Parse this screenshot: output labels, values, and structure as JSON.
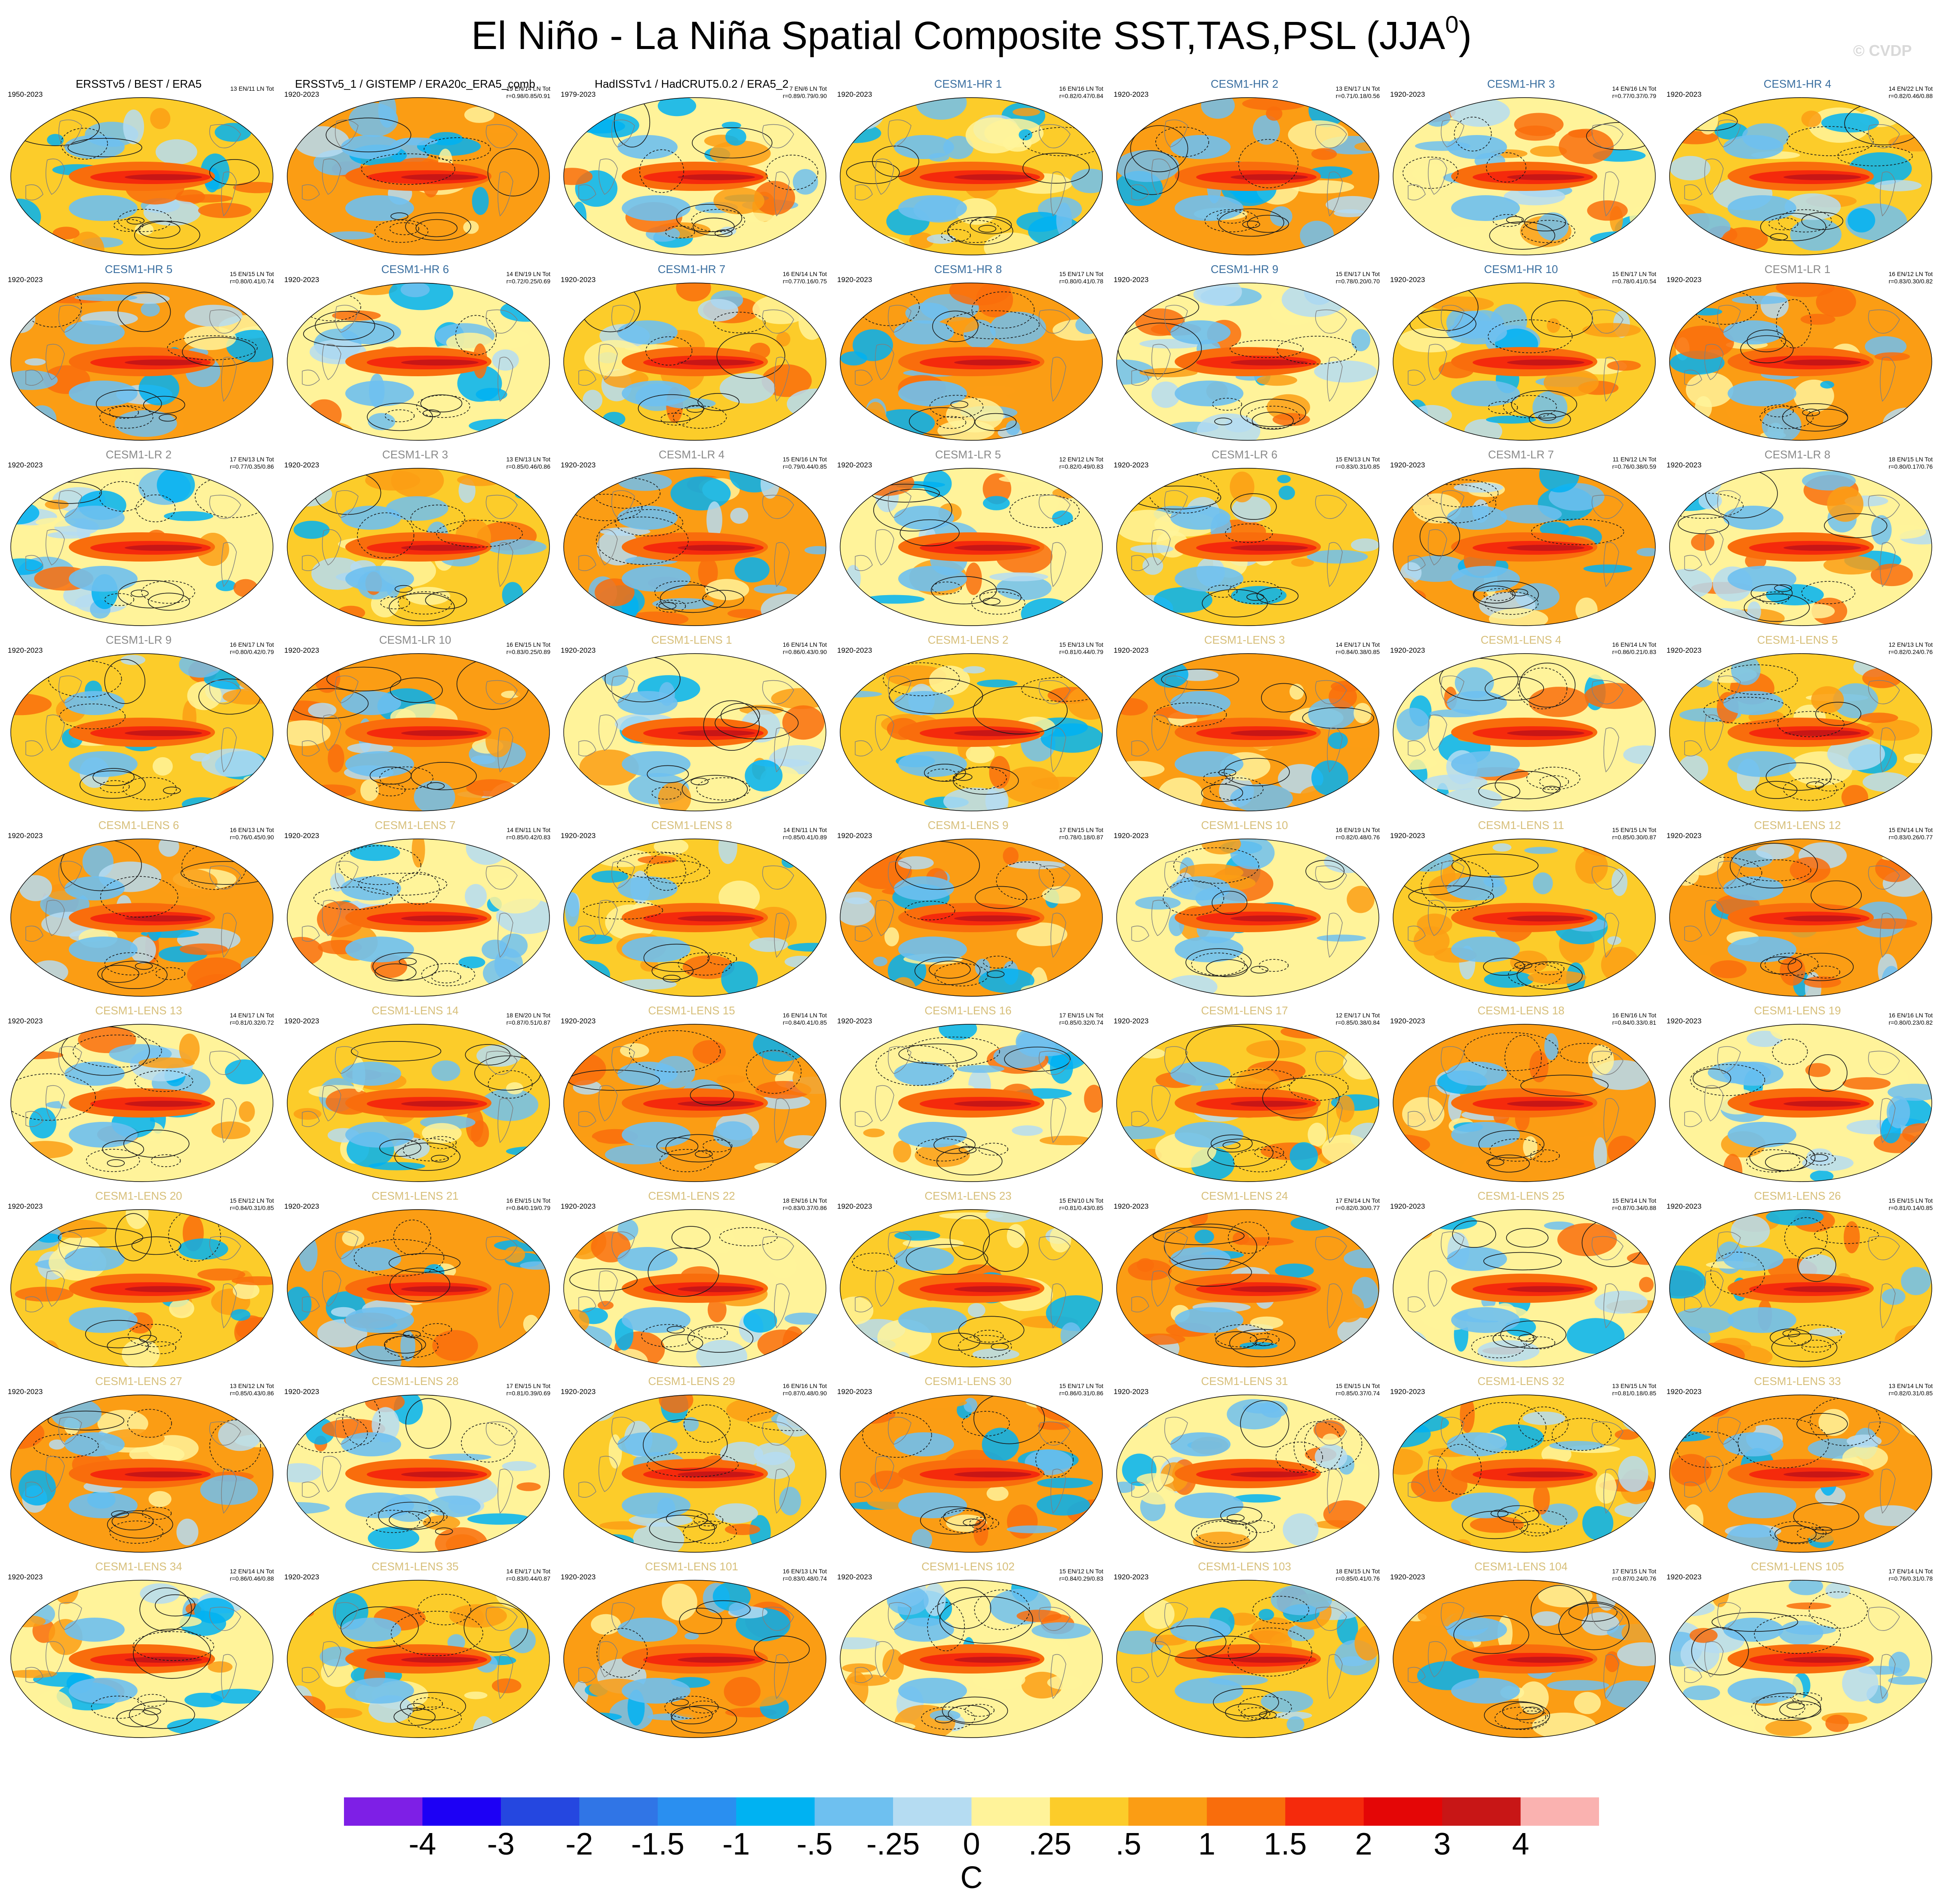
{
  "title": {
    "text": "El Niño - La Niña Spatial Composite SST,TAS,PSL (JJA",
    "superscript": "0",
    "suffix": ")"
  },
  "watermark": "© CVDP",
  "colors": {
    "obs_title": "#000000",
    "hr_title": "#3a6fa0",
    "lr_title": "#8a8a8a",
    "lens_title": "#d7bf7a"
  },
  "panels": [
    {
      "title": "ERSSTv5 / BEST / ERA5",
      "group": "obs",
      "years": "1950-2023",
      "stats": [
        "13 EN/11 LN Tot",
        ""
      ]
    },
    {
      "title": "ERSSTv5_1 / GISTEMP / ERA20c_ERA5_comb",
      "group": "obs",
      "years": "1920-2023",
      "stats": [
        "19 EN/14 LN Tot",
        "r=0.98/0.85/0.91"
      ]
    },
    {
      "title": "HadISSTv1 / HadCRUT5.0.2 / ERA5_2",
      "group": "obs",
      "years": "1979-2023",
      "stats": [
        "7 EN/6 LN Tot",
        "r=0.89/0.79/0.90"
      ]
    },
    {
      "title": "CESM1-HR 1",
      "group": "hr",
      "years": "1920-2023",
      "stats": [
        "16 EN/16 LN Tot",
        "r=0.82/0.47/0.84"
      ]
    },
    {
      "title": "CESM1-HR 2",
      "group": "hr",
      "years": "1920-2023",
      "stats": [
        "13 EN/17 LN Tot",
        "r=0.71/0.18/0.56"
      ]
    },
    {
      "title": "CESM1-HR 3",
      "group": "hr",
      "years": "1920-2023",
      "stats": [
        "14 EN/16 LN Tot",
        "r=0.77/0.37/0.79"
      ]
    },
    {
      "title": "CESM1-HR 4",
      "group": "hr",
      "years": "1920-2023",
      "stats": [
        "14 EN/22 LN Tot",
        "r=0.82/0.46/0.88"
      ]
    },
    {
      "title": "CESM1-HR 5",
      "group": "hr",
      "years": "1920-2023",
      "stats": [
        "15 EN/15 LN Tot",
        "r=0.80/0.41/0.74"
      ]
    },
    {
      "title": "CESM1-HR 6",
      "group": "hr",
      "years": "1920-2023",
      "stats": [
        "14 EN/19 LN Tot",
        "r=0.72/0.25/0.69"
      ]
    },
    {
      "title": "CESM1-HR 7",
      "group": "hr",
      "years": "1920-2023",
      "stats": [
        "16 EN/14 LN Tot",
        "r=0.77/0.16/0.75"
      ]
    },
    {
      "title": "CESM1-HR 8",
      "group": "hr",
      "years": "1920-2023",
      "stats": [
        "15 EN/17 LN Tot",
        "r=0.80/0.41/0.78"
      ]
    },
    {
      "title": "CESM1-HR 9",
      "group": "hr",
      "years": "1920-2023",
      "stats": [
        "15 EN/17 LN Tot",
        "r=0.78/0.20/0.70"
      ]
    },
    {
      "title": "CESM1-HR 10",
      "group": "hr",
      "years": "1920-2023",
      "stats": [
        "15 EN/17 LN Tot",
        "r=0.78/0.41/0.54"
      ]
    },
    {
      "title": "CESM1-LR 1",
      "group": "lr",
      "years": "1920-2023",
      "stats": [
        "16 EN/12 LN Tot",
        "r=0.83/0.30/0.82"
      ]
    },
    {
      "title": "CESM1-LR 2",
      "group": "lr",
      "years": "1920-2023",
      "stats": [
        "17 EN/13 LN Tot",
        "r=0.77/0.35/0.86"
      ]
    },
    {
      "title": "CESM1-LR 3",
      "group": "lr",
      "years": "1920-2023",
      "stats": [
        "13 EN/13 LN Tot",
        "r=0.85/0.46/0.86"
      ]
    },
    {
      "title": "CESM1-LR 4",
      "group": "lr",
      "years": "1920-2023",
      "stats": [
        "15 EN/16 LN Tot",
        "r=0.79/0.44/0.85"
      ]
    },
    {
      "title": "CESM1-LR 5",
      "group": "lr",
      "years": "1920-2023",
      "stats": [
        "12 EN/12 LN Tot",
        "r=0.82/0.49/0.83"
      ]
    },
    {
      "title": "CESM1-LR 6",
      "group": "lr",
      "years": "1920-2023",
      "stats": [
        "15 EN/13 LN Tot",
        "r=0.83/0.31/0.85"
      ]
    },
    {
      "title": "CESM1-LR 7",
      "group": "lr",
      "years": "1920-2023",
      "stats": [
        "11 EN/12 LN Tot",
        "r=0.76/0.38/0.59"
      ]
    },
    {
      "title": "CESM1-LR 8",
      "group": "lr",
      "years": "1920-2023",
      "stats": [
        "18 EN/15 LN Tot",
        "r=0.80/0.17/0.76"
      ]
    },
    {
      "title": "CESM1-LR 9",
      "group": "lr",
      "years": "1920-2023",
      "stats": [
        "16 EN/17 LN Tot",
        "r=0.80/0.42/0.79"
      ]
    },
    {
      "title": "CESM1-LR 10",
      "group": "lr",
      "years": "1920-2023",
      "stats": [
        "16 EN/15 LN Tot",
        "r=0.83/0.25/0.89"
      ]
    },
    {
      "title": "CESM1-LENS 1",
      "group": "lens",
      "years": "1920-2023",
      "stats": [
        "16 EN/14 LN Tot",
        "r=0.86/0.43/0.90"
      ]
    },
    {
      "title": "CESM1-LENS 2",
      "group": "lens",
      "years": "1920-2023",
      "stats": [
        "15 EN/13 LN Tot",
        "r=0.81/0.44/0.79"
      ]
    },
    {
      "title": "CESM1-LENS 3",
      "group": "lens",
      "years": "1920-2023",
      "stats": [
        "14 EN/17 LN Tot",
        "r=0.84/0.38/0.85"
      ]
    },
    {
      "title": "CESM1-LENS 4",
      "group": "lens",
      "years": "1920-2023",
      "stats": [
        "16 EN/14 LN Tot",
        "r=0.86/0.21/0.83"
      ]
    },
    {
      "title": "CESM1-LENS 5",
      "group": "lens",
      "years": "1920-2023",
      "stats": [
        "12 EN/13 LN Tot",
        "r=0.82/0.24/0.76"
      ]
    },
    {
      "title": "CESM1-LENS 6",
      "group": "lens",
      "years": "1920-2023",
      "stats": [
        "16 EN/13 LN Tot",
        "r=0.76/0.45/0.90"
      ]
    },
    {
      "title": "CESM1-LENS 7",
      "group": "lens",
      "years": "1920-2023",
      "stats": [
        "14 EN/11 LN Tot",
        "r=0.85/0.42/0.83"
      ]
    },
    {
      "title": "CESM1-LENS 8",
      "group": "lens",
      "years": "1920-2023",
      "stats": [
        "14 EN/11 LN Tot",
        "r=0.85/0.41/0.89"
      ]
    },
    {
      "title": "CESM1-LENS 9",
      "group": "lens",
      "years": "1920-2023",
      "stats": [
        "17 EN/15 LN Tot",
        "r=0.78/0.18/0.87"
      ]
    },
    {
      "title": "CESM1-LENS 10",
      "group": "lens",
      "years": "1920-2023",
      "stats": [
        "16 EN/19 LN Tot",
        "r=0.82/0.48/0.76"
      ]
    },
    {
      "title": "CESM1-LENS 11",
      "group": "lens",
      "years": "1920-2023",
      "stats": [
        "15 EN/15 LN Tot",
        "r=0.85/0.30/0.87"
      ]
    },
    {
      "title": "CESM1-LENS 12",
      "group": "lens",
      "years": "1920-2023",
      "stats": [
        "15 EN/14 LN Tot",
        "r=0.83/0.26/0.77"
      ]
    },
    {
      "title": "CESM1-LENS 13",
      "group": "lens",
      "years": "1920-2023",
      "stats": [
        "14 EN/17 LN Tot",
        "r=0.81/0.32/0.72"
      ]
    },
    {
      "title": "CESM1-LENS 14",
      "group": "lens",
      "years": "1920-2023",
      "stats": [
        "18 EN/20 LN Tot",
        "r=0.87/0.51/0.87"
      ]
    },
    {
      "title": "CESM1-LENS 15",
      "group": "lens",
      "years": "1920-2023",
      "stats": [
        "16 EN/14 LN Tot",
        "r=0.84/0.41/0.85"
      ]
    },
    {
      "title": "CESM1-LENS 16",
      "group": "lens",
      "years": "1920-2023",
      "stats": [
        "17 EN/15 LN Tot",
        "r=0.85/0.32/0.74"
      ]
    },
    {
      "title": "CESM1-LENS 17",
      "group": "lens",
      "years": "1920-2023",
      "stats": [
        "12 EN/17 LN Tot",
        "r=0.85/0.38/0.84"
      ]
    },
    {
      "title": "CESM1-LENS 18",
      "group": "lens",
      "years": "1920-2023",
      "stats": [
        "16 EN/16 LN Tot",
        "r=0.84/0.33/0.81"
      ]
    },
    {
      "title": "CESM1-LENS 19",
      "group": "lens",
      "years": "1920-2023",
      "stats": [
        "16 EN/16 LN Tot",
        "r=0.80/0.23/0.82"
      ]
    },
    {
      "title": "CESM1-LENS 20",
      "group": "lens",
      "years": "1920-2023",
      "stats": [
        "15 EN/12 LN Tot",
        "r=0.84/0.31/0.85"
      ]
    },
    {
      "title": "CESM1-LENS 21",
      "group": "lens",
      "years": "1920-2023",
      "stats": [
        "16 EN/15 LN Tot",
        "r=0.84/0.19/0.79"
      ]
    },
    {
      "title": "CESM1-LENS 22",
      "group": "lens",
      "years": "1920-2023",
      "stats": [
        "18 EN/16 LN Tot",
        "r=0.83/0.37/0.86"
      ]
    },
    {
      "title": "CESM1-LENS 23",
      "group": "lens",
      "years": "1920-2023",
      "stats": [
        "15 EN/10 LN Tot",
        "r=0.81/0.43/0.85"
      ]
    },
    {
      "title": "CESM1-LENS 24",
      "group": "lens",
      "years": "1920-2023",
      "stats": [
        "17 EN/14 LN Tot",
        "r=0.82/0.30/0.77"
      ]
    },
    {
      "title": "CESM1-LENS 25",
      "group": "lens",
      "years": "1920-2023",
      "stats": [
        "15 EN/14 LN Tot",
        "r=0.87/0.34/0.88"
      ]
    },
    {
      "title": "CESM1-LENS 26",
      "group": "lens",
      "years": "1920-2023",
      "stats": [
        "15 EN/15 LN Tot",
        "r=0.81/0.14/0.85"
      ]
    },
    {
      "title": "CESM1-LENS 27",
      "group": "lens",
      "years": "1920-2023",
      "stats": [
        "13 EN/12 LN Tot",
        "r=0.85/0.43/0.86"
      ]
    },
    {
      "title": "CESM1-LENS 28",
      "group": "lens",
      "years": "1920-2023",
      "stats": [
        "17 EN/15 LN Tot",
        "r=0.81/0.39/0.69"
      ]
    },
    {
      "title": "CESM1-LENS 29",
      "group": "lens",
      "years": "1920-2023",
      "stats": [
        "16 EN/16 LN Tot",
        "r=0.87/0.48/0.90"
      ]
    },
    {
      "title": "CESM1-LENS 30",
      "group": "lens",
      "years": "1920-2023",
      "stats": [
        "15 EN/17 LN Tot",
        "r=0.86/0.31/0.86"
      ]
    },
    {
      "title": "CESM1-LENS 31",
      "group": "lens",
      "years": "1920-2023",
      "stats": [
        "15 EN/15 LN Tot",
        "r=0.85/0.37/0.74"
      ]
    },
    {
      "title": "CESM1-LENS 32",
      "group": "lens",
      "years": "1920-2023",
      "stats": [
        "13 EN/15 LN Tot",
        "r=0.81/0.18/0.85"
      ]
    },
    {
      "title": "CESM1-LENS 33",
      "group": "lens",
      "years": "1920-2023",
      "stats": [
        "13 EN/14 LN Tot",
        "r=0.82/0.31/0.85"
      ]
    },
    {
      "title": "CESM1-LENS 34",
      "group": "lens",
      "years": "1920-2023",
      "stats": [
        "12 EN/14 LN Tot",
        "r=0.86/0.46/0.88"
      ]
    },
    {
      "title": "CESM1-LENS 35",
      "group": "lens",
      "years": "1920-2023",
      "stats": [
        "14 EN/17 LN Tot",
        "r=0.83/0.44/0.87"
      ]
    },
    {
      "title": "CESM1-LENS 101",
      "group": "lens",
      "years": "1920-2023",
      "stats": [
        "16 EN/13 LN Tot",
        "r=0.83/0.48/0.74"
      ]
    },
    {
      "title": "CESM1-LENS 102",
      "group": "lens",
      "years": "1920-2023",
      "stats": [
        "15 EN/12 LN Tot",
        "r=0.84/0.29/0.83"
      ]
    },
    {
      "title": "CESM1-LENS 103",
      "group": "lens",
      "years": "1920-2023",
      "stats": [
        "18 EN/15 LN Tot",
        "r=0.85/0.41/0.76"
      ]
    },
    {
      "title": "CESM1-LENS 104",
      "group": "lens",
      "years": "1920-2023",
      "stats": [
        "17 EN/15 LN Tot",
        "r=0.87/0.24/0.76"
      ]
    },
    {
      "title": "CESM1-LENS 105",
      "group": "lens",
      "years": "1920-2023",
      "stats": [
        "17 EN/14 LN Tot",
        "r=0.76/0.31/0.78"
      ]
    }
  ],
  "colorbar": {
    "colors": [
      "#7e1fe6",
      "#1d00f5",
      "#2547e0",
      "#3075e6",
      "#2a8ff0",
      "#00b2f2",
      "#6ec0f0",
      "#b5dcf2",
      "#fff39a",
      "#fccc2a",
      "#fb9d14",
      "#f96d0c",
      "#f52a0c",
      "#e40606",
      "#c81616",
      "#fab2b0"
    ],
    "tick_labels": [
      "-4",
      "-3",
      "-2",
      "-1.5",
      "-1",
      "-.5",
      "-.25",
      "0",
      ".25",
      ".5",
      "1",
      "1.5",
      "2",
      "3",
      "4"
    ],
    "units": "C"
  }
}
